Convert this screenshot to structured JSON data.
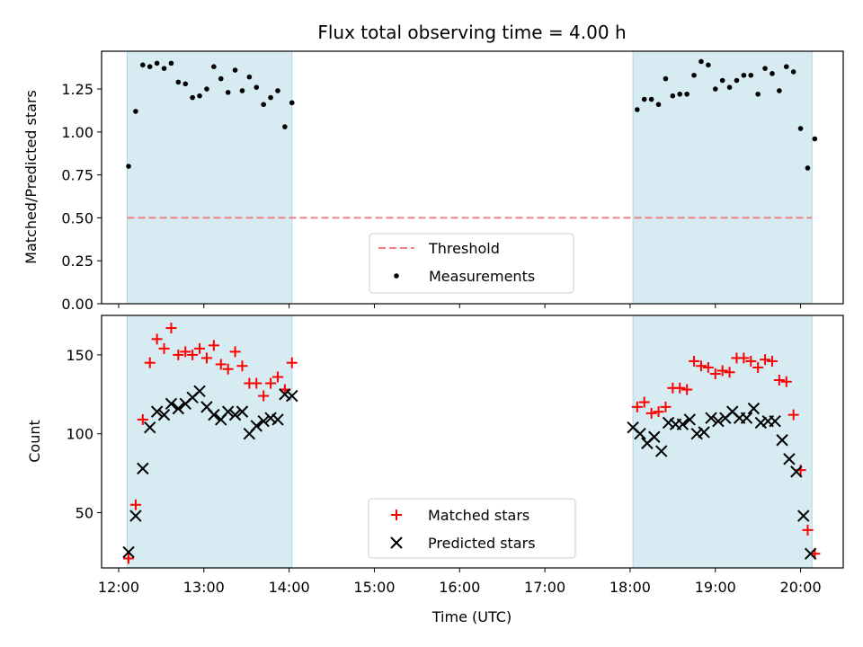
{
  "title": "Flux total observing time = 4.00 h",
  "colors": {
    "shade": "#add8e6",
    "threshold": "#f08080",
    "measurements": "#000000",
    "matched": "#ff0000",
    "predicted": "#000000"
  },
  "chart_data": [
    {
      "type": "scatter",
      "ylabel": "Matched/Predicted stars",
      "ylim": [
        0.0,
        1.47
      ],
      "yticks": [
        0.0,
        0.25,
        0.5,
        0.75,
        1.0,
        1.25
      ],
      "ytick_labels": [
        "0.00",
        "0.25",
        "0.50",
        "0.75",
        "1.00",
        "1.25"
      ],
      "xlim": [
        "11:48",
        "20:30"
      ],
      "shaded_intervals": [
        [
          "12:06",
          "14:02"
        ],
        [
          "18:02",
          "20:08"
        ]
      ],
      "threshold": {
        "value": 0.5,
        "x_range": [
          "12:06",
          "20:08"
        ],
        "style": "dashed"
      },
      "legend": {
        "position": "bottom-center",
        "entries": [
          "Threshold",
          "Measurements"
        ]
      },
      "series": [
        {
          "name": "Measurements",
          "marker": "dot",
          "x": [
            "12:07",
            "12:12",
            "12:17",
            "12:22",
            "12:27",
            "12:32",
            "12:37",
            "12:42",
            "12:47",
            "12:52",
            "12:57",
            "13:02",
            "13:07",
            "13:12",
            "13:17",
            "13:22",
            "13:27",
            "13:32",
            "13:37",
            "13:42",
            "13:47",
            "13:52",
            "13:57",
            "14:02",
            "18:05",
            "18:10",
            "18:15",
            "18:20",
            "18:25",
            "18:30",
            "18:35",
            "18:40",
            "18:45",
            "18:50",
            "18:55",
            "19:00",
            "19:05",
            "19:10",
            "19:15",
            "19:20",
            "19:25",
            "19:30",
            "19:35",
            "19:40",
            "19:45",
            "19:50",
            "19:55",
            "20:00",
            "20:05",
            "20:10"
          ],
          "y": [
            0.8,
            1.12,
            1.39,
            1.38,
            1.4,
            1.37,
            1.4,
            1.29,
            1.28,
            1.2,
            1.21,
            1.25,
            1.38,
            1.31,
            1.23,
            1.36,
            1.24,
            1.32,
            1.26,
            1.16,
            1.2,
            1.24,
            1.03,
            1.17,
            1.13,
            1.19,
            1.19,
            1.16,
            1.31,
            1.21,
            1.22,
            1.22,
            1.33,
            1.41,
            1.39,
            1.25,
            1.3,
            1.26,
            1.3,
            1.33,
            1.33,
            1.22,
            1.37,
            1.34,
            1.24,
            1.38,
            1.35,
            1.02,
            0.79,
            0.96
          ]
        }
      ]
    },
    {
      "type": "scatter",
      "ylabel": "Count",
      "xlabel": "Time (UTC)",
      "ylim": [
        15,
        175
      ],
      "yticks": [
        50,
        100,
        150
      ],
      "ytick_labels": [
        "50",
        "100",
        "150"
      ],
      "xlim": [
        "11:48",
        "20:30"
      ],
      "xticks": [
        "12:00",
        "13:00",
        "14:00",
        "15:00",
        "16:00",
        "17:00",
        "18:00",
        "19:00",
        "20:00"
      ],
      "shaded_intervals": [
        [
          "12:06",
          "14:02"
        ],
        [
          "18:02",
          "20:08"
        ]
      ],
      "legend": {
        "position": "bottom-center",
        "entries": [
          "Matched stars",
          "Predicted stars"
        ]
      },
      "series": [
        {
          "name": "Matched stars",
          "marker": "plus",
          "x": [
            "12:07",
            "12:12",
            "12:17",
            "12:22",
            "12:27",
            "12:32",
            "12:37",
            "12:42",
            "12:47",
            "12:52",
            "12:57",
            "13:02",
            "13:07",
            "13:12",
            "13:17",
            "13:22",
            "13:27",
            "13:32",
            "13:37",
            "13:42",
            "13:47",
            "13:52",
            "13:57",
            "14:02",
            "18:05",
            "18:10",
            "18:15",
            "18:20",
            "18:25",
            "18:30",
            "18:35",
            "18:40",
            "18:45",
            "18:50",
            "18:55",
            "19:00",
            "19:05",
            "19:10",
            "19:15",
            "19:20",
            "19:25",
            "19:30",
            "19:35",
            "19:40",
            "19:45",
            "19:50",
            "19:55",
            "20:00",
            "20:05",
            "20:10"
          ],
          "y": [
            21,
            55,
            109,
            145,
            160,
            154,
            167,
            150,
            152,
            150,
            154,
            148,
            156,
            144,
            141,
            152,
            143,
            132,
            132,
            124,
            132,
            136,
            128,
            145,
            117,
            120,
            113,
            114,
            117,
            129,
            129,
            128,
            146,
            143,
            142,
            138,
            140,
            139,
            148,
            148,
            146,
            142,
            147,
            146,
            134,
            133,
            112,
            77,
            39,
            24
          ]
        },
        {
          "name": "Predicted stars",
          "marker": "cross",
          "x": [
            "12:07",
            "12:12",
            "12:17",
            "12:22",
            "12:27",
            "12:32",
            "12:37",
            "12:42",
            "12:47",
            "12:52",
            "12:57",
            "13:02",
            "13:07",
            "13:12",
            "13:17",
            "13:22",
            "13:27",
            "13:32",
            "13:37",
            "13:42",
            "13:47",
            "13:52",
            "13:57",
            "14:02",
            "18:02",
            "18:07",
            "18:12",
            "18:17",
            "18:22",
            "18:27",
            "18:32",
            "18:37",
            "18:42",
            "18:47",
            "18:52",
            "18:57",
            "19:02",
            "19:07",
            "19:12",
            "19:17",
            "19:22",
            "19:27",
            "19:32",
            "19:37",
            "19:42",
            "19:47",
            "19:52",
            "19:57",
            "20:02",
            "20:07"
          ],
          "y": [
            25,
            48,
            78,
            104,
            114,
            112,
            119,
            116,
            119,
            123,
            127,
            117,
            112,
            109,
            114,
            112,
            114,
            100,
            105,
            108,
            110,
            109,
            125,
            124,
            104,
            100,
            94,
            98,
            89,
            107,
            106,
            106,
            109,
            100,
            101,
            110,
            108,
            110,
            114,
            110,
            110,
            116,
            107,
            108,
            108,
            96,
            84,
            76,
            48,
            24
          ]
        }
      ]
    }
  ]
}
